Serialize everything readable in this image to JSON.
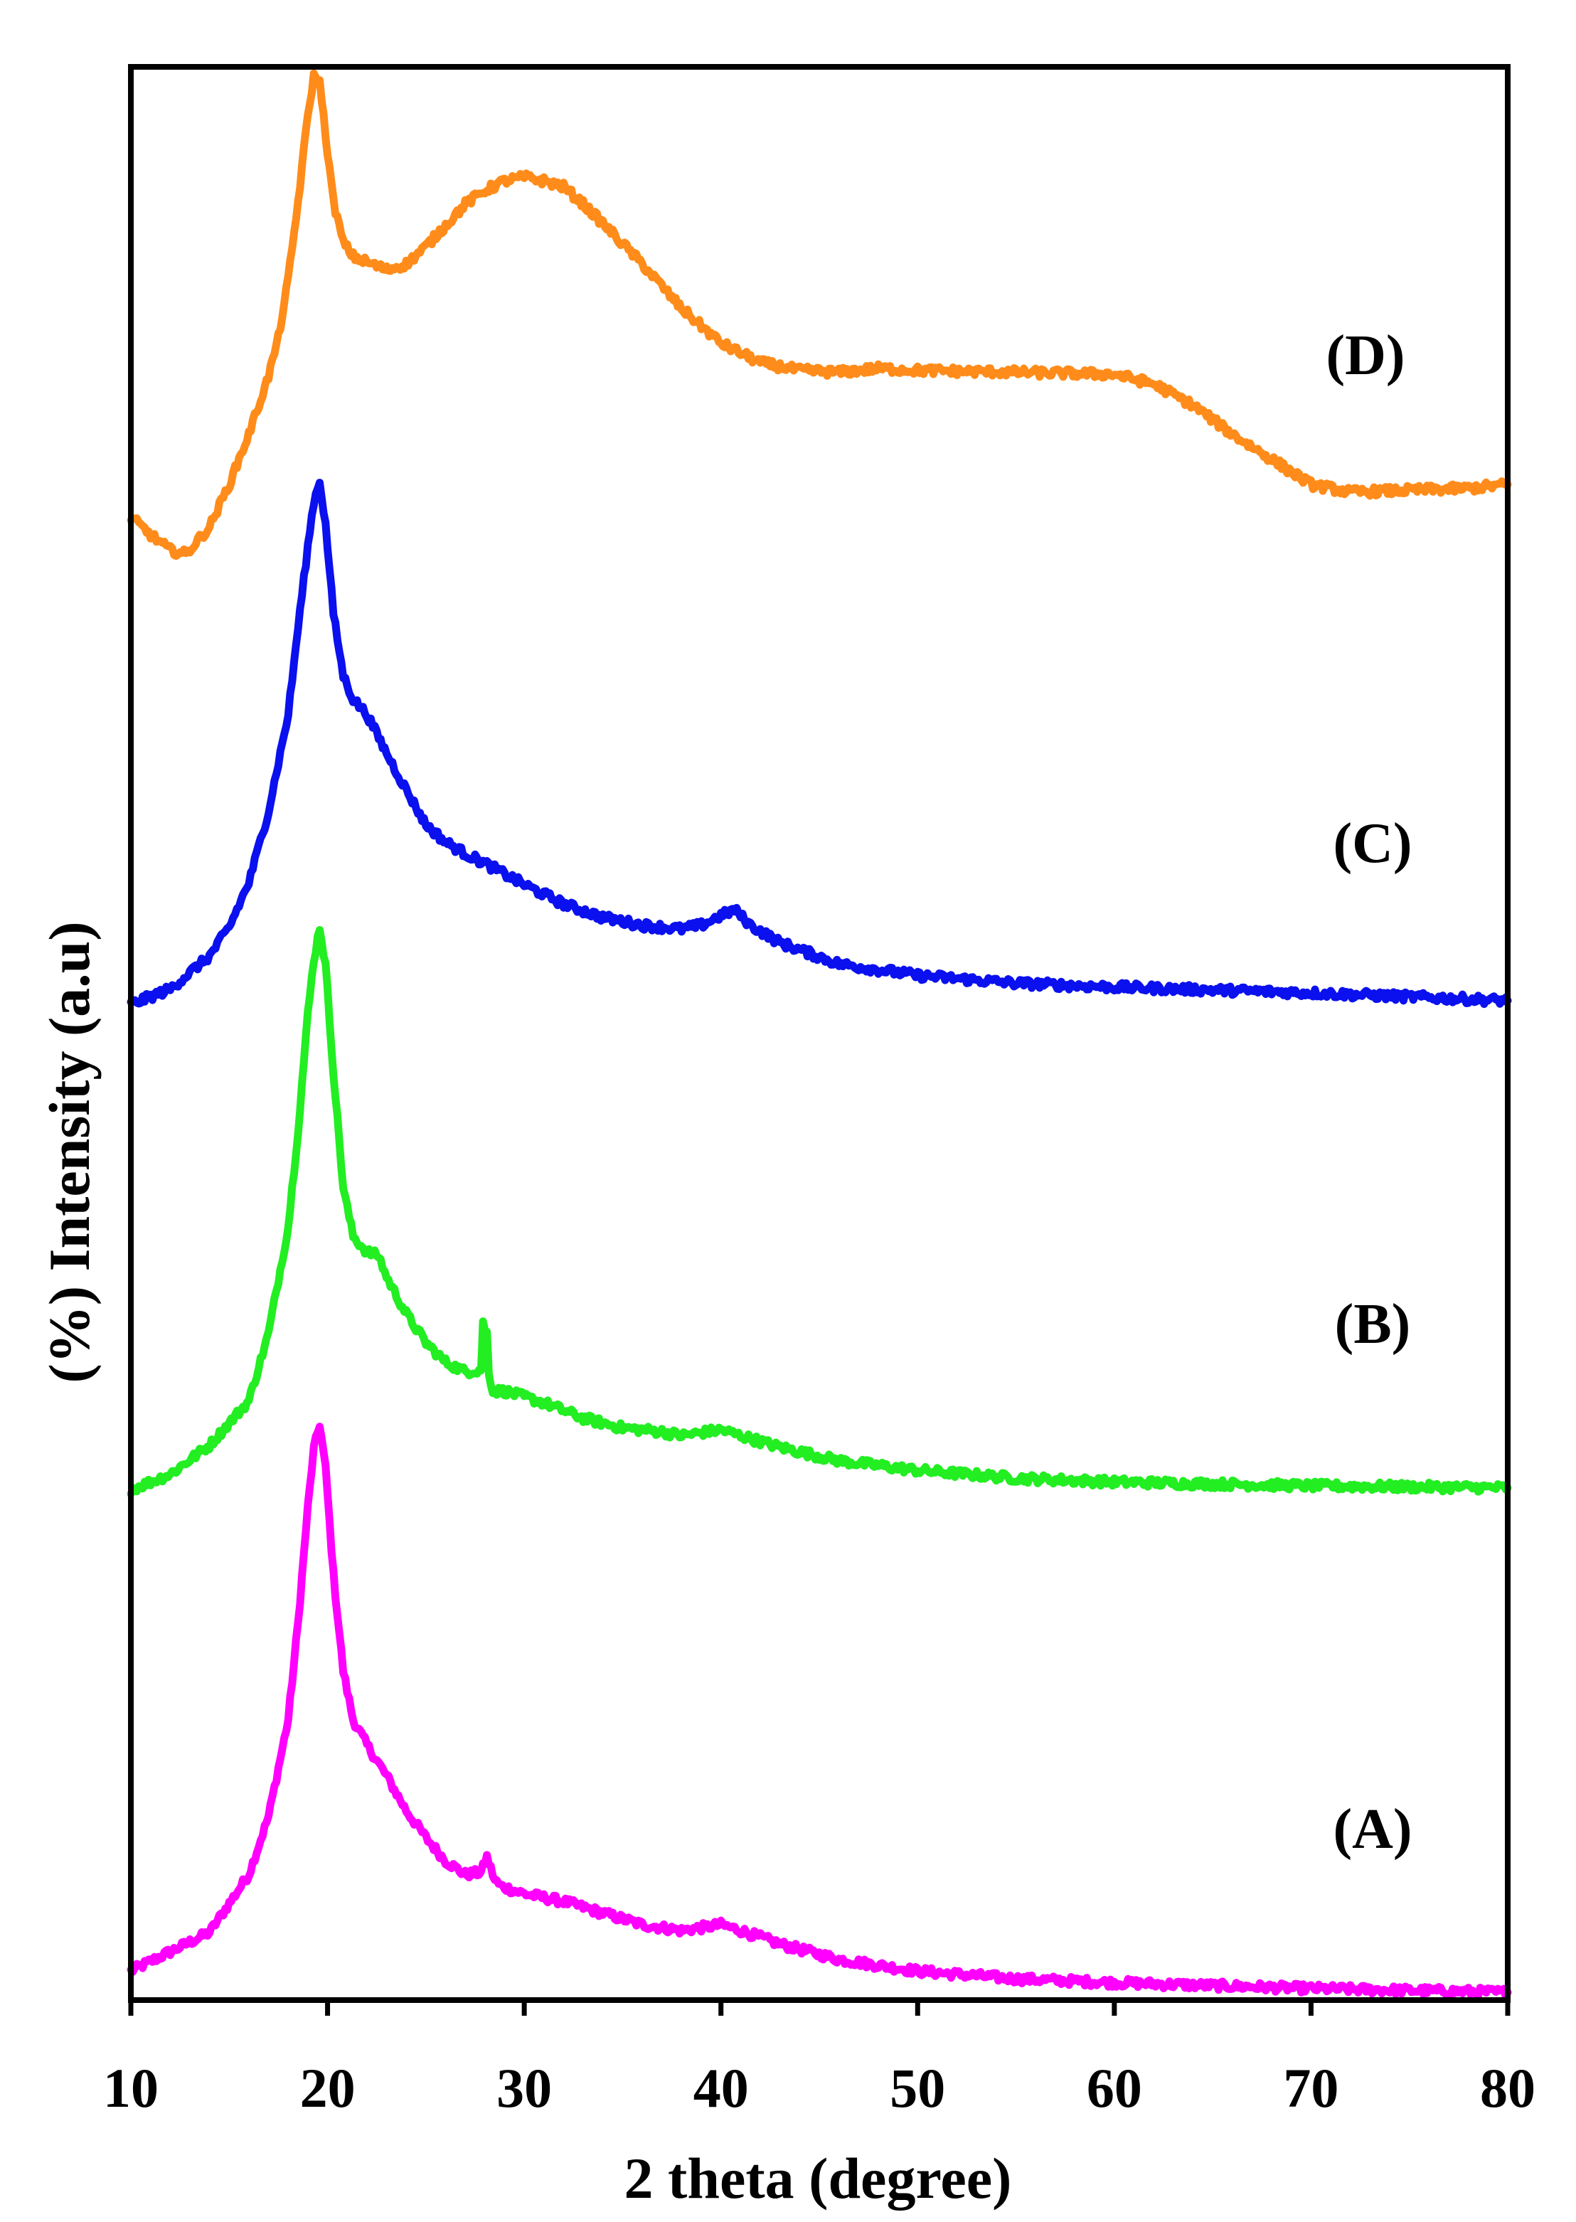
{
  "chart_data": {
    "type": "line",
    "title": "",
    "xlabel": "2 theta (degree)",
    "ylabel": "(%) Intensity (a.u)",
    "xlim": [
      10,
      80
    ],
    "ylim": [
      0,
      100
    ],
    "xticks": [
      "10",
      "20",
      "30",
      "40",
      "50",
      "60",
      "70",
      "80"
    ],
    "grid": false,
    "series": [
      {
        "name": "(A)",
        "color": "#ff00ff",
        "x": [
          10,
          12,
          14,
          16,
          17,
          18,
          18.5,
          19,
          19.3,
          19.6,
          19.9,
          20.3,
          20.8,
          21.3,
          22,
          23,
          24,
          25,
          26,
          27,
          27.8,
          28.1,
          28.3,
          28.5,
          28.8,
          30,
          32,
          34,
          36,
          38,
          40,
          41,
          43,
          46,
          50,
          55,
          60,
          70,
          80
        ],
        "y": [
          1.5,
          2.5,
          3.5,
          6.5,
          9.5,
          14.5,
          19.5,
          25.5,
          28.5,
          29.8,
          27.5,
          22,
          17,
          14.5,
          13.2,
          11.6,
          9.8,
          8.4,
          7.2,
          6.5,
          6.6,
          7.4,
          6.8,
          6.2,
          5.9,
          5.5,
          5.1,
          4.5,
          3.9,
          3.6,
          3.9,
          3.6,
          2.9,
          2.1,
          1.5,
          1.1,
          0.9,
          0.6,
          0.4
        ]
      },
      {
        "name": "(B)",
        "color": "#22ee22",
        "x": [
          10,
          12,
          14,
          16,
          17,
          18,
          18.5,
          19,
          19.3,
          19.6,
          19.9,
          20.3,
          20.8,
          21.3,
          22,
          22.6,
          23,
          24,
          25,
          26,
          27,
          27.8,
          27.9,
          28.1,
          28.2,
          28.4,
          29,
          31,
          33,
          35,
          37,
          38,
          40,
          41,
          43,
          46,
          50,
          55,
          60,
          70,
          80
        ],
        "y": [
          26.4,
          27.2,
          28.7,
          31,
          34.5,
          40,
          45,
          51,
          53.8,
          55.5,
          53.5,
          48,
          42,
          39.5,
          38.7,
          38.5,
          37.4,
          35.5,
          34,
          33,
          32.5,
          32.6,
          35,
          34.5,
          32.5,
          31.5,
          31.5,
          30.9,
          30.1,
          29.6,
          29.4,
          29.2,
          29.5,
          29.2,
          28.6,
          27.9,
          27.4,
          27,
          26.8,
          26.6,
          26.5
        ]
      },
      {
        "name": "(C)",
        "color": "#0b10ee",
        "x": [
          10,
          12,
          14,
          15,
          16,
          17,
          18,
          18.5,
          19,
          19.3,
          19.6,
          19.9,
          20.3,
          20.8,
          21.3,
          22,
          23,
          24,
          25,
          26,
          27,
          28,
          30,
          32,
          34,
          36,
          38,
          39,
          40,
          40.7,
          41.5,
          43,
          46,
          50,
          55,
          60,
          70,
          80
        ],
        "y": [
          51.5,
          52.3,
          54,
          55.5,
          57.8,
          61.5,
          66.5,
          71,
          75.2,
          77.5,
          78.6,
          76.3,
          71.7,
          68.5,
          67.3,
          66.5,
          64.5,
          62.6,
          60.8,
          59.9,
          59.3,
          58.8,
          57.7,
          56.7,
          56,
          55.6,
          55.4,
          55.6,
          56.1,
          56.4,
          55.6,
          54.7,
          53.6,
          53,
          52.6,
          52.4,
          52.1,
          51.7
        ]
      },
      {
        "name": "(D)",
        "color": "#ff8c1a",
        "x": [
          10,
          11,
          12,
          12.8,
          14,
          15,
          16,
          17,
          17.5,
          18,
          18.5,
          19,
          19.3,
          19.6,
          19.9,
          20.3,
          20.8,
          21.3,
          22,
          23,
          24,
          25,
          26,
          27,
          28,
          29,
          30,
          31,
          32,
          33,
          34,
          36,
          38,
          40,
          42,
          44,
          46,
          48,
          50,
          55,
          60,
          62,
          64,
          66,
          68,
          70,
          72,
          75,
          78,
          80
        ],
        "y": [
          76.7,
          75.8,
          75,
          74.8,
          76.2,
          78.4,
          81,
          84,
          86,
          89,
          93,
          97.5,
          99.5,
          99.2,
          96.5,
          93,
          90.9,
          90.2,
          89.9,
          89.5,
          89.8,
          90.7,
          91.8,
          92.9,
          93.6,
          94.1,
          94.3,
          94.1,
          93.8,
          92.9,
          91.9,
          89.8,
          87.5,
          85.7,
          84.7,
          84.3,
          84.2,
          84.4,
          84.3,
          84.2,
          84.1,
          83.6,
          82.5,
          81,
          79.7,
          78.4,
          78,
          78.1,
          78.2,
          78.4
        ]
      }
    ],
    "annotations": [
      "(D)",
      "(C)",
      "(B)",
      "(A)"
    ]
  }
}
